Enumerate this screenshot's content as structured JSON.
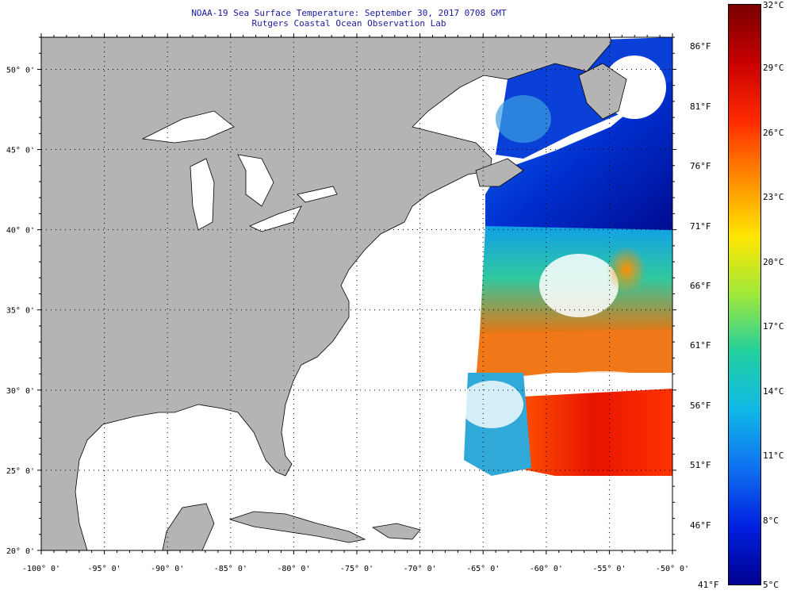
{
  "title": {
    "line1": "NOAA-19 Sea Surface Temperature:  September 30, 2017 0708 GMT",
    "line2": "Rutgers Coastal Ocean Observation Lab"
  },
  "map": {
    "extent": {
      "lon": [
        -100,
        -50
      ],
      "lat": [
        20,
        52
      ]
    },
    "lon_labels": [
      "-100° 0'",
      "-95° 0'",
      "-90° 0'",
      "-85° 0'",
      "-80° 0'",
      "-75° 0'",
      "-70° 0'",
      "-65° 0'",
      "-60° 0'",
      "-55° 0'",
      "-50° 0'"
    ],
    "lat_labels": [
      "20° 0'",
      "25° 0'",
      "30° 0'",
      "35° 0'",
      "40° 0'",
      "45° 0'",
      "50° 0'"
    ],
    "colors": {
      "land": "#b4b4b4",
      "no_data": "#ffffff",
      "grid": "#000000"
    }
  },
  "colorbar": {
    "f_labels": [
      "86°F",
      "81°F",
      "76°F",
      "71°F",
      "66°F",
      "61°F",
      "56°F",
      "51°F",
      "46°F",
      "41°F"
    ],
    "c_labels": [
      "32°C",
      "29°C",
      "26°C",
      "23°C",
      "20°C",
      "17°C",
      "14°C",
      "11°C",
      "8°C",
      "5°C"
    ],
    "range_c": [
      5,
      32
    ],
    "gradient": [
      "#7a0000",
      "#c80000",
      "#ff2a00",
      "#ff8c00",
      "#ffe600",
      "#9fe83a",
      "#20d0a0",
      "#10b8e8",
      "#1070f0",
      "#0020e0",
      "#000090"
    ]
  }
}
